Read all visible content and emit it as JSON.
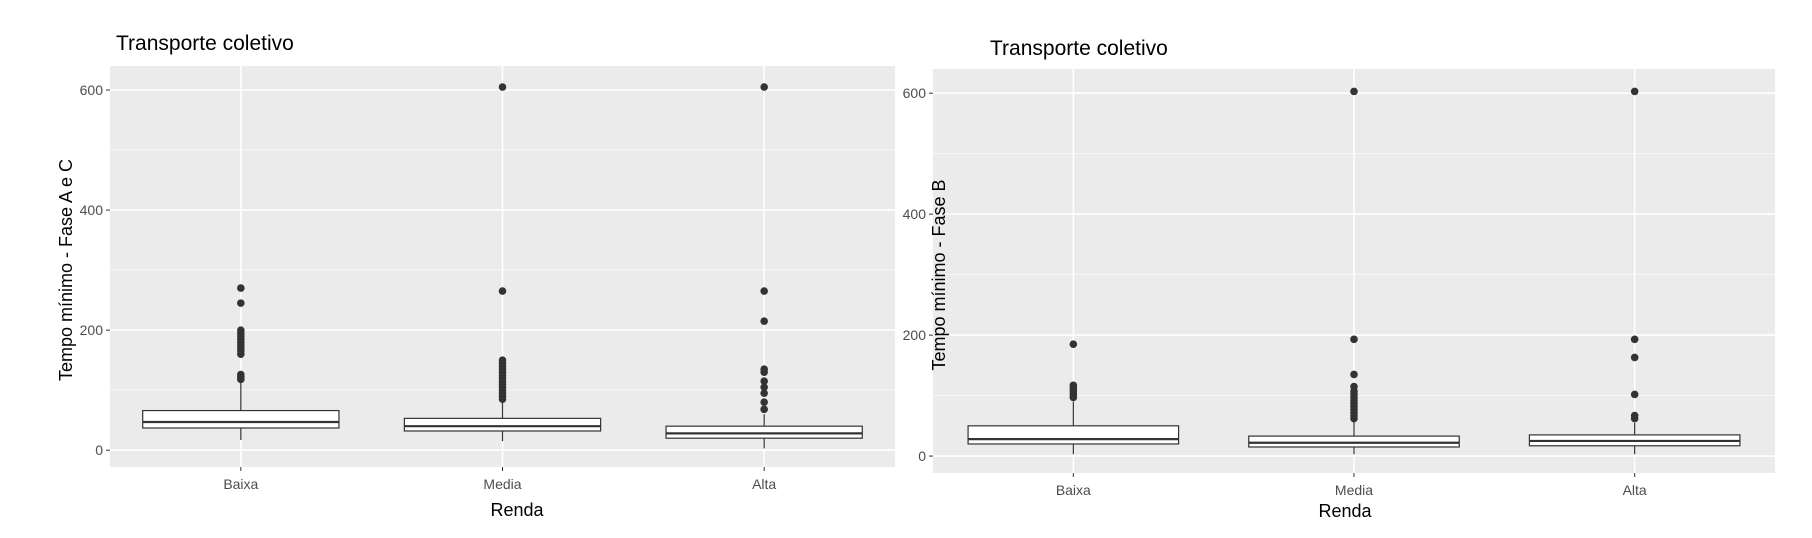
{
  "chart_data": [
    {
      "type": "boxplot",
      "title": "Transporte coletivo",
      "xlabel": "Renda",
      "ylabel": "Tempo mínimo - Fase A e C",
      "categories": [
        "Baixa",
        "Media",
        "Alta"
      ],
      "ylim": [
        -28,
        640
      ],
      "yticks": [
        0,
        200,
        400,
        600
      ],
      "grid": true,
      "boxes": [
        {
          "category": "Baixa",
          "whisker_low": 17,
          "q1": 37,
          "median": 47,
          "q3": 66,
          "whisker_high": 112,
          "outliers": [
            118,
            122,
            126,
            160,
            165,
            170,
            175,
            180,
            185,
            190,
            195,
            200,
            245,
            270
          ]
        },
        {
          "category": "Media",
          "whisker_low": 15,
          "q1": 32,
          "median": 40,
          "q3": 53,
          "whisker_high": 80,
          "outliers": [
            85,
            90,
            95,
            100,
            105,
            110,
            115,
            120,
            125,
            130,
            135,
            140,
            145,
            150,
            265,
            605
          ]
        },
        {
          "category": "Alta",
          "whisker_low": 3,
          "q1": 20,
          "median": 28,
          "q3": 40,
          "whisker_high": 60,
          "outliers": [
            68,
            80,
            95,
            105,
            115,
            130,
            135,
            215,
            265,
            605
          ]
        }
      ]
    },
    {
      "type": "boxplot",
      "title": "Transporte coletivo",
      "xlabel": "Renda",
      "ylabel": "Tempo mínimo - Fase B",
      "categories": [
        "Baixa",
        "Media",
        "Alta"
      ],
      "ylim": [
        -28,
        640
      ],
      "yticks": [
        0,
        200,
        400,
        600
      ],
      "grid": true,
      "boxes": [
        {
          "category": "Baixa",
          "whisker_low": 3,
          "q1": 20,
          "median": 28,
          "q3": 50,
          "whisker_high": 90,
          "outliers": [
            97,
            102,
            107,
            112,
            117,
            185
          ]
        },
        {
          "category": "Media",
          "whisker_low": 3,
          "q1": 15,
          "median": 22,
          "q3": 33,
          "whisker_high": 58,
          "outliers": [
            62,
            67,
            72,
            77,
            82,
            87,
            92,
            97,
            102,
            107,
            115,
            135,
            193,
            603
          ]
        },
        {
          "category": "Alta",
          "whisker_low": 3,
          "q1": 17,
          "median": 25,
          "q3": 35,
          "whisker_high": 55,
          "outliers": [
            62,
            67,
            102,
            163,
            193,
            603
          ]
        }
      ]
    }
  ]
}
